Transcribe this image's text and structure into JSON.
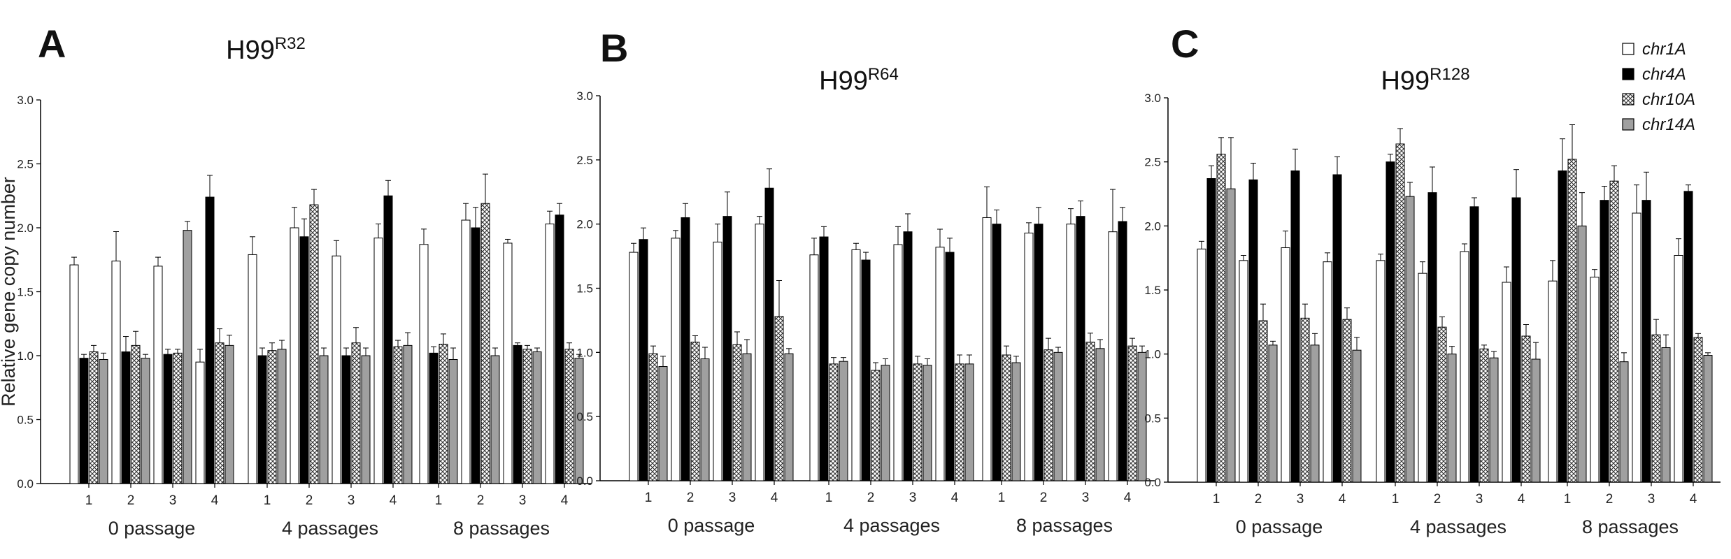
{
  "colors": {
    "chr1A": "#ffffff",
    "chr4A": "#000000",
    "chr10A": "pattern-crosshatch",
    "chr14A": "#a0a0a0",
    "axis": "#000000"
  },
  "legend": [
    "chr1A",
    "chr4A",
    "chr10A",
    "chr14A"
  ],
  "chart_data": [
    {
      "panel": "A",
      "type": "bar",
      "title": "H99",
      "title_sup": "R32",
      "ylabel": "Relative gene copy number",
      "ylim": [
        0,
        3.0
      ],
      "yticks": [
        "0.0",
        "0.5",
        "1.0",
        "1.5",
        "2.0",
        "2.5",
        "3.0"
      ],
      "groups": [
        "0 passage",
        "4 passages",
        "8 passages"
      ],
      "categories": [
        "1",
        "2",
        "3",
        "4"
      ],
      "series": [
        {
          "name": "chr1A",
          "values": [
            [
              1.71,
              1.74,
              1.7,
              0.95
            ],
            [
              1.79,
              2.0,
              1.78,
              1.92
            ],
            [
              1.87,
              2.06,
              1.88,
              2.03
            ]
          ],
          "errors": [
            [
              0.06,
              0.23,
              0.07,
              0.1
            ],
            [
              0.14,
              0.16,
              0.12,
              0.11
            ],
            [
              0.12,
              0.13,
              0.03,
              0.1
            ]
          ]
        },
        {
          "name": "chr4A",
          "values": [
            [
              0.98,
              1.03,
              1.01,
              2.24
            ],
            [
              1.0,
              1.93,
              1.0,
              2.25
            ],
            [
              1.02,
              2.0,
              1.08,
              2.1
            ]
          ],
          "errors": [
            [
              0.03,
              0.12,
              0.04,
              0.17
            ],
            [
              0.06,
              0.14,
              0.06,
              0.12
            ],
            [
              0.05,
              0.16,
              0.02,
              0.09
            ]
          ]
        },
        {
          "name": "chr10A",
          "values": [
            [
              1.03,
              1.08,
              1.02,
              1.1
            ],
            [
              1.04,
              2.18,
              1.1,
              1.07
            ],
            [
              1.09,
              2.19,
              1.05,
              1.05
            ]
          ],
          "errors": [
            [
              0.05,
              0.11,
              0.03,
              0.11
            ],
            [
              0.06,
              0.12,
              0.12,
              0.05
            ],
            [
              0.08,
              0.23,
              0.03,
              0.05
            ]
          ]
        },
        {
          "name": "chr14A",
          "values": [
            [
              0.97,
              0.98,
              1.98,
              1.08
            ],
            [
              1.05,
              1.0,
              1.0,
              1.08
            ],
            [
              0.97,
              1.0,
              1.03,
              0.98
            ]
          ],
          "errors": [
            [
              0.05,
              0.03,
              0.07,
              0.08
            ],
            [
              0.07,
              0.06,
              0.06,
              0.1
            ],
            [
              0.09,
              0.06,
              0.03,
              0.03
            ]
          ]
        }
      ]
    },
    {
      "panel": "B",
      "type": "bar",
      "title": "H99",
      "title_sup": "R64",
      "ylabel": "",
      "ylim": [
        0,
        3.0
      ],
      "yticks": [
        "0.0",
        "0.5",
        "1.0",
        "1.5",
        "2.0",
        "2.5",
        "3.0"
      ],
      "groups": [
        "0 passage",
        "4 passages",
        "8 passages"
      ],
      "categories": [
        "1",
        "2",
        "3",
        "4"
      ],
      "series": [
        {
          "name": "chr1A",
          "values": [
            [
              1.78,
              1.89,
              1.86,
              2.0
            ],
            [
              1.76,
              1.8,
              1.84,
              1.82
            ],
            [
              2.05,
              1.93,
              2.0,
              1.94
            ]
          ],
          "errors": [
            [
              0.07,
              0.06,
              0.14,
              0.06
            ],
            [
              0.13,
              0.05,
              0.14,
              0.14
            ],
            [
              0.24,
              0.08,
              0.12,
              0.33
            ]
          ]
        },
        {
          "name": "chr4A",
          "values": [
            [
              1.88,
              2.05,
              2.06,
              2.28
            ],
            [
              1.9,
              1.72,
              1.94,
              1.78
            ],
            [
              2.0,
              2.0,
              2.06,
              2.02
            ]
          ],
          "errors": [
            [
              0.09,
              0.11,
              0.19,
              0.15
            ],
            [
              0.08,
              0.06,
              0.14,
              0.11
            ],
            [
              0.11,
              0.13,
              0.12,
              0.11
            ]
          ]
        },
        {
          "name": "chr10A",
          "values": [
            [
              0.99,
              1.08,
              1.06,
              1.28
            ],
            [
              0.91,
              0.86,
              0.91,
              0.91
            ],
            [
              0.98,
              1.02,
              1.08,
              1.05
            ]
          ],
          "errors": [
            [
              0.06,
              0.05,
              0.1,
              0.28
            ],
            [
              0.05,
              0.06,
              0.06,
              0.07
            ],
            [
              0.07,
              0.09,
              0.07,
              0.06
            ]
          ]
        },
        {
          "name": "chr14A",
          "values": [
            [
              0.89,
              0.95,
              0.99,
              0.99
            ],
            [
              0.93,
              0.9,
              0.9,
              0.91
            ],
            [
              0.92,
              1.0,
              1.03,
              1.0
            ]
          ],
          "errors": [
            [
              0.08,
              0.09,
              0.11,
              0.04
            ],
            [
              0.03,
              0.05,
              0.05,
              0.07
            ],
            [
              0.05,
              0.04,
              0.07,
              0.05
            ]
          ]
        }
      ]
    },
    {
      "panel": "C",
      "type": "bar",
      "title": "H99",
      "title_sup": "R128",
      "ylabel": "",
      "ylim": [
        0,
        3.0
      ],
      "yticks": [
        "0.0",
        "0.5",
        "1.0",
        "1.5",
        "2.0",
        "2.5",
        "3.0"
      ],
      "groups": [
        "0 passage",
        "4 passages",
        "8 passages"
      ],
      "categories": [
        "1",
        "2",
        "3",
        "4"
      ],
      "series": [
        {
          "name": "chr1A",
          "values": [
            [
              1.82,
              1.73,
              1.83,
              1.72
            ],
            [
              1.73,
              1.63,
              1.8,
              1.56
            ],
            [
              1.57,
              1.6,
              2.1,
              1.77
            ]
          ],
          "errors": [
            [
              0.06,
              0.04,
              0.13,
              0.07
            ],
            [
              0.05,
              0.09,
              0.06,
              0.12
            ],
            [
              0.16,
              0.06,
              0.22,
              0.13
            ]
          ]
        },
        {
          "name": "chr4A",
          "values": [
            [
              2.37,
              2.36,
              2.43,
              2.4
            ],
            [
              2.5,
              2.26,
              2.15,
              2.22
            ],
            [
              2.43,
              2.2,
              2.2,
              2.27
            ]
          ],
          "errors": [
            [
              0.1,
              0.13,
              0.17,
              0.14
            ],
            [
              0.06,
              0.2,
              0.07,
              0.22
            ],
            [
              0.25,
              0.11,
              0.22,
              0.05
            ]
          ]
        },
        {
          "name": "chr10A",
          "values": [
            [
              2.56,
              1.26,
              1.28,
              1.27
            ],
            [
              2.64,
              1.21,
              1.04,
              1.14
            ],
            [
              2.52,
              2.35,
              1.15,
              1.13
            ]
          ],
          "errors": [
            [
              0.13,
              0.13,
              0.11,
              0.09
            ],
            [
              0.12,
              0.08,
              0.03,
              0.09
            ],
            [
              0.27,
              0.12,
              0.12,
              0.03
            ]
          ]
        },
        {
          "name": "chr14A",
          "values": [
            [
              2.29,
              1.07,
              1.07,
              1.03
            ],
            [
              2.23,
              1.0,
              0.97,
              0.96
            ],
            [
              2.0,
              0.94,
              1.05,
              0.99
            ]
          ],
          "errors": [
            [
              0.4,
              0.03,
              0.09,
              0.1
            ],
            [
              0.11,
              0.06,
              0.05,
              0.13
            ],
            [
              0.26,
              0.07,
              0.1,
              0.02
            ]
          ]
        }
      ]
    }
  ]
}
